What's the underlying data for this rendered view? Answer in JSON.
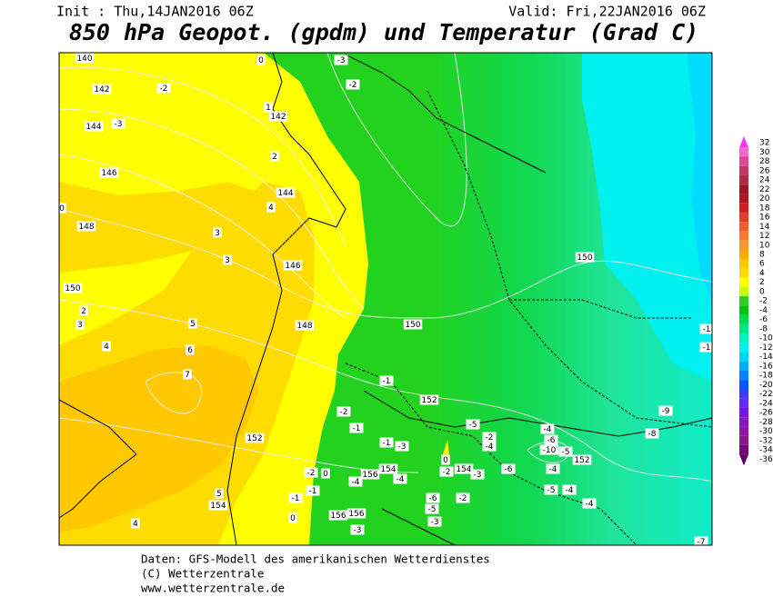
{
  "header": {
    "init": "Init : Thu,14JAN2016 06Z",
    "valid": "Valid: Fri,22JAN2016 06Z",
    "title": "850 hPa Geopot. (gpdm) und Temperatur (Grad C)"
  },
  "map_labels": [
    140,
    0,
    -3,
    142,
    -2,
    -2,
    1,
    142,
    144,
    -3,
    2,
    146,
    144,
    4,
    0,
    148,
    3,
    3,
    146,
    150,
    150,
    2,
    3,
    5,
    148,
    150,
    4,
    6,
    7,
    -1,
    152,
    -2,
    -9,
    -1,
    -5,
    -8,
    152,
    -1,
    -3,
    -4,
    -6,
    -10,
    -5,
    152,
    0,
    -2,
    0,
    156,
    154,
    -4,
    -4,
    -2,
    154,
    -3,
    -6,
    -4,
    -1,
    -1,
    -6,
    -2,
    -5,
    -5,
    -4,
    -4,
    5,
    154,
    156,
    156,
    -3,
    -3,
    0,
    4,
    -7,
    -1,
    -1,
    -2,
    -4
  ],
  "legend": [
    {
      "value": 32,
      "color": "#ff33ff"
    },
    {
      "value": 30,
      "color": "#ff66cc"
    },
    {
      "value": 28,
      "color": "#e6449a"
    },
    {
      "value": 26,
      "color": "#cc3366"
    },
    {
      "value": 24,
      "color": "#b42848"
    },
    {
      "value": 22,
      "color": "#a0142a"
    },
    {
      "value": 20,
      "color": "#b4141e"
    },
    {
      "value": 18,
      "color": "#d21e1e"
    },
    {
      "value": 16,
      "color": "#e63c28"
    },
    {
      "value": 14,
      "color": "#f55a28"
    },
    {
      "value": 12,
      "color": "#ff7828"
    },
    {
      "value": 10,
      "color": "#ff9628"
    },
    {
      "value": 8,
      "color": "#ffaa00"
    },
    {
      "value": 6,
      "color": "#ffc800"
    },
    {
      "value": 4,
      "color": "#ffdc00"
    },
    {
      "value": 2,
      "color": "#ffff00"
    },
    {
      "value": 0,
      "color": "#c8ff00"
    },
    {
      "value": -2,
      "color": "#28d21e"
    },
    {
      "value": -4,
      "color": "#00c800"
    },
    {
      "value": -6,
      "color": "#00dc46"
    },
    {
      "value": -8,
      "color": "#00e882"
    },
    {
      "value": -10,
      "color": "#00f0be"
    },
    {
      "value": -12,
      "color": "#00f0f0"
    },
    {
      "value": -14,
      "color": "#00d2ff"
    },
    {
      "value": -16,
      "color": "#00aaff"
    },
    {
      "value": -18,
      "color": "#0082ff"
    },
    {
      "value": -20,
      "color": "#005aff"
    },
    {
      "value": -22,
      "color": "#3c3cff"
    },
    {
      "value": -24,
      "color": "#6428ff"
    },
    {
      "value": -26,
      "color": "#7814e6"
    },
    {
      "value": -28,
      "color": "#8c14c8"
    },
    {
      "value": -30,
      "color": "#9614aa"
    },
    {
      "value": -32,
      "color": "#8c148c"
    },
    {
      "value": -34,
      "color": "#780a78"
    },
    {
      "value": -36,
      "color": "#640064"
    }
  ],
  "footer": {
    "source": "Daten: GFS-Modell des amerikanischen Wetterdienstes",
    "copyright": "(C) Wetterzentrale",
    "url": "www.wetterzentrale.de"
  }
}
